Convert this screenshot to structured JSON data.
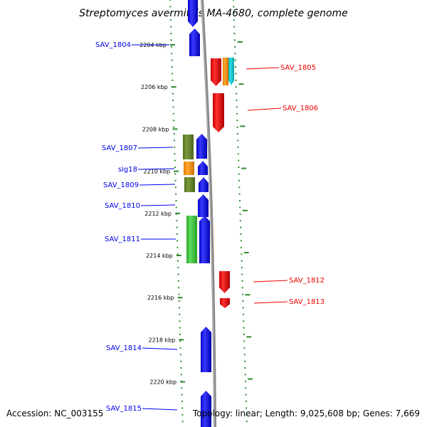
{
  "title": "Streptomyces avermitilis MA-4680, complete genome",
  "footer": {
    "accession": "Accession: NC_003155",
    "summary": "Topology: linear; Length: 9,025,608 bp; Genes: 7,669"
  },
  "colors": {
    "forward_label": "#0000ee",
    "reverse_label": "#ee0000",
    "backbone": "#888888",
    "dots": "#2e8b2e"
  },
  "scale": {
    "unit": "kbp",
    "ticks": [
      2204,
      2206,
      2208,
      2210,
      2212,
      2214,
      2216,
      2218,
      2220
    ],
    "tick_labels": [
      "2204 kbp",
      "2206 kbp",
      "2208 kbp",
      "2210 kbp",
      "2212 kbp",
      "2214 kbp",
      "2216 kbp",
      "2218 kbp",
      "2220 kbp"
    ]
  },
  "features": [
    {
      "name": "SAV_1804",
      "strand": "left",
      "color": "blue",
      "kbp_start": 2203.2,
      "kbp_end": 2204.5
    },
    {
      "name": "SAV_1805",
      "strand": "right",
      "color": "red",
      "kbp_start": 2204.7,
      "kbp_end": 2205.9
    },
    {
      "name": "SAV_1806",
      "strand": "right",
      "color": "red",
      "kbp_start": 2206.3,
      "kbp_end": 2208.1
    },
    {
      "name": "SAV_1807",
      "strand": "left",
      "color": "olive",
      "kbp_start": 2208.2,
      "kbp_end": 2209.4
    },
    {
      "name": "sig18",
      "strand": "left",
      "color": "orange",
      "kbp_start": 2209.5,
      "kbp_end": 2210.2
    },
    {
      "name": "SAV_1809",
      "strand": "left",
      "color": "olive",
      "kbp_start": 2210.3,
      "kbp_end": 2211.0
    },
    {
      "name": "SAV_1810",
      "strand": "left",
      "color": "blue",
      "kbp_start": 2211.1,
      "kbp_end": 2212.2
    },
    {
      "name": "SAV_1811",
      "strand": "left",
      "color": "green",
      "kbp_start": 2212.0,
      "kbp_end": 2214.3
    },
    {
      "name": "SAV_1812",
      "strand": "right",
      "color": "red",
      "kbp_start": 2215.4,
      "kbp_end": 2216.4
    },
    {
      "name": "SAV_1813",
      "strand": "right",
      "color": "red",
      "kbp_start": 2216.4,
      "kbp_end": 2216.9
    },
    {
      "name": "SAV_1814",
      "strand": "left",
      "color": "blue",
      "kbp_start": 2217.6,
      "kbp_end": 2219.7
    },
    {
      "name": "SAV_1815",
      "strand": "left",
      "color": "blue",
      "kbp_start": 2220.4,
      "kbp_end": 2222.0
    }
  ]
}
